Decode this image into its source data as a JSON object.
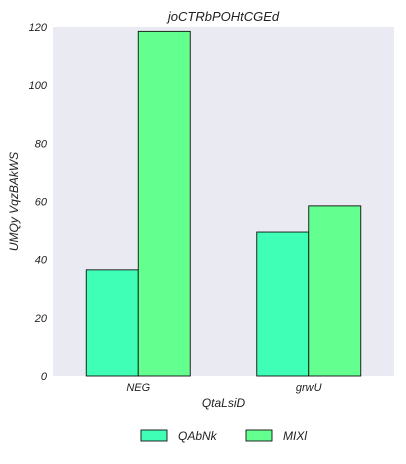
{
  "chart_data": {
    "type": "bar",
    "title": "joCTRbPOHtCGEd",
    "xlabel": "QtaLsiD",
    "ylabel": "UMQy VqzBAkWS",
    "categories": [
      "NEG",
      "grwU"
    ],
    "series": [
      {
        "name": "QAbNk",
        "values": [
          36.5,
          49.5
        ],
        "color": "#3fffb7"
      },
      {
        "name": "MIXl",
        "values": [
          118.5,
          58.5
        ],
        "color": "#63ff8f"
      }
    ],
    "ylim": [
      0,
      120
    ],
    "yticks": [
      0,
      20,
      40,
      60,
      80,
      100,
      120
    ],
    "grid": false,
    "legend_position": "bottom-center",
    "plot_background": "#eaeaf2"
  }
}
